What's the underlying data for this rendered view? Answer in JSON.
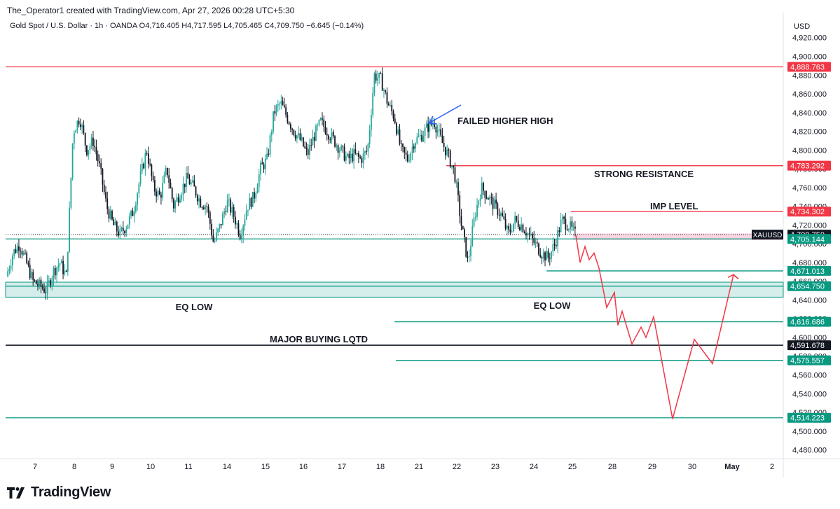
{
  "header": {
    "credit": "The_Operator1 created with TradingView.com, Apr 27, 2026 00:28 UTC+5:30",
    "symbol_line": "Gold Spot / U.S. Dollar · 1h · OANDA",
    "open_label": "O",
    "open": "4,716.405",
    "high_label": "H",
    "high": "4,717.595",
    "low_label": "L",
    "low": "4,705.465",
    "close_label": "C",
    "close": "4,709.750",
    "change": "−6.645 (−0.14%)"
  },
  "axis": {
    "currency": "USD"
  },
  "footer": {
    "brand": "TradingView"
  },
  "colors": {
    "up": "#26a69a",
    "down": "#131722",
    "resistance": "#f23645",
    "support": "#089981",
    "arrow": "#2962ff",
    "projection": "#f23645"
  },
  "chart_data": {
    "type": "candlestick",
    "ylim": [
      4470,
      4930
    ],
    "y_ticks": [
      4480,
      4500,
      4520,
      4540,
      4560,
      4580,
      4600,
      4620,
      4640,
      4660,
      4680,
      4700,
      4720,
      4740,
      4760,
      4780,
      4800,
      4820,
      4840,
      4860,
      4880,
      4900,
      4920
    ],
    "y_tick_labels": [
      "4,480.000",
      "4,500.000",
      "4,520.000",
      "4,540.000",
      "4,560.000",
      "4,580.000",
      "4,600.000",
      "4,620.000",
      "4,640.000",
      "4,660.000",
      "4,680.000",
      "4,700.000",
      "4,720.000",
      "4,740.000",
      "4,760.000",
      "4,780.000",
      "4,800.000",
      "4,820.000",
      "4,840.000",
      "4,860.000",
      "4,880.000",
      "4,900.000",
      "4,920.000"
    ],
    "x_ticks": [
      "7",
      "8",
      "9",
      "10",
      "11",
      "14",
      "15",
      "16",
      "17",
      "18",
      "21",
      "22",
      "23",
      "24",
      "25",
      "28",
      "29",
      "30",
      "May",
      "2"
    ],
    "price_path": [
      [
        0,
        4665
      ],
      [
        1,
        4690
      ],
      [
        2,
        4700
      ],
      [
        3,
        4680
      ],
      [
        4,
        4660
      ],
      [
        5,
        4655
      ],
      [
        6,
        4650
      ],
      [
        7,
        4670
      ],
      [
        8,
        4680
      ],
      [
        9,
        4665
      ],
      [
        10,
        4820
      ],
      [
        11,
        4835
      ],
      [
        12,
        4800
      ],
      [
        13,
        4810
      ],
      [
        14,
        4780
      ],
      [
        15,
        4740
      ],
      [
        16,
        4720
      ],
      [
        17,
        4710
      ],
      [
        18,
        4720
      ],
      [
        19,
        4735
      ],
      [
        20,
        4770
      ],
      [
        21,
        4800
      ],
      [
        22,
        4760
      ],
      [
        23,
        4750
      ],
      [
        24,
        4780
      ],
      [
        25,
        4740
      ],
      [
        26,
        4755
      ],
      [
        27,
        4770
      ],
      [
        28,
        4760
      ],
      [
        29,
        4745
      ],
      [
        30,
        4740
      ],
      [
        31,
        4700
      ],
      [
        32,
        4720
      ],
      [
        33,
        4745
      ],
      [
        34,
        4730
      ],
      [
        35,
        4710
      ],
      [
        36,
        4740
      ],
      [
        37,
        4750
      ],
      [
        38,
        4780
      ],
      [
        39,
        4790
      ],
      [
        40,
        4840
      ],
      [
        41,
        4850
      ],
      [
        42,
        4835
      ],
      [
        43,
        4820
      ],
      [
        44,
        4810
      ],
      [
        45,
        4795
      ],
      [
        46,
        4815
      ],
      [
        47,
        4830
      ],
      [
        48,
        4820
      ],
      [
        49,
        4810
      ],
      [
        50,
        4800
      ],
      [
        51,
        4790
      ],
      [
        52,
        4795
      ],
      [
        53,
        4790
      ],
      [
        54,
        4800
      ],
      [
        55,
        4880
      ],
      [
        56,
        4875
      ],
      [
        57,
        4850
      ],
      [
        58,
        4835
      ],
      [
        59,
        4800
      ],
      [
        60,
        4790
      ],
      [
        61,
        4810
      ],
      [
        62,
        4815
      ],
      [
        63,
        4825
      ],
      [
        64,
        4830
      ],
      [
        65,
        4810
      ],
      [
        66,
        4795
      ],
      [
        67,
        4775
      ],
      [
        68,
        4720
      ],
      [
        69,
        4680
      ],
      [
        70,
        4730
      ],
      [
        71,
        4760
      ],
      [
        72,
        4750
      ],
      [
        73,
        4740
      ],
      [
        74,
        4730
      ],
      [
        75,
        4710
      ],
      [
        76,
        4725
      ],
      [
        77,
        4720
      ],
      [
        78,
        4710
      ],
      [
        79,
        4700
      ],
      [
        80,
        4690
      ],
      [
        81,
        4685
      ],
      [
        82,
        4700
      ],
      [
        83,
        4725
      ],
      [
        84,
        4720
      ],
      [
        85,
        4710
      ]
    ],
    "candle_index_ticks": [
      0.8,
      10,
      19.2,
      28.4,
      37.6,
      46.9,
      56.1,
      65.3,
      74.5,
      83.7,
      93,
      102.2,
      111.4,
      120.6,
      129.8,
      139,
      148.3,
      157.5,
      166.7,
      175.9
    ],
    "price_labels": [
      {
        "value": 4888.763,
        "text": "4,888.763",
        "kind": "resistance"
      },
      {
        "value": 4783.292,
        "text": "4,783.292",
        "kind": "resistance"
      },
      {
        "value": 4734.302,
        "text": "4,734.302",
        "kind": "resistance"
      },
      {
        "value": 4709.75,
        "text": "4,709.750",
        "kind": "current",
        "symbol": "XAUUSD"
      },
      {
        "value": 4705.144,
        "text": "4,705.144",
        "kind": "support"
      },
      {
        "value": 4671.013,
        "text": "4,671.013",
        "kind": "support"
      },
      {
        "value": 4654.75,
        "text": "4,654.750",
        "kind": "support"
      },
      {
        "value": 4616.686,
        "text": "4,616.686",
        "kind": "support"
      },
      {
        "value": 4591.678,
        "text": "4,591.678",
        "kind": "major"
      },
      {
        "value": 4575.557,
        "text": "4,575.557",
        "kind": "support"
      },
      {
        "value": 4514.223,
        "text": "4,514.223",
        "kind": "support"
      }
    ],
    "annotations": [
      {
        "text": "FAILED HIGHER HIGH",
        "x_day": "21",
        "value": 4836
      },
      {
        "text": "STRONG RESISTANCE",
        "x_day": "22",
        "value": 4777
      },
      {
        "text": "IMP LEVEL",
        "x_day": "25",
        "value": 4740
      },
      {
        "text": "EQ LOW",
        "x_day": "11",
        "value": 4638
      },
      {
        "text": "EQ LOW",
        "x_day": "24",
        "value": 4640
      },
      {
        "text": "MAJOR BUYING LQTD",
        "x_day": "15",
        "value": 4596
      }
    ],
    "projection": [
      [
        4709,
        0
      ],
      [
        4680,
        1
      ],
      [
        4697,
        2
      ],
      [
        4683,
        3
      ],
      [
        4690,
        4
      ],
      [
        4674,
        5
      ],
      [
        4632,
        6
      ],
      [
        4648,
        7
      ],
      [
        4613,
        8
      ],
      [
        4628,
        9
      ],
      [
        4593,
        10
      ],
      [
        4611,
        11
      ],
      [
        4600,
        12
      ],
      [
        4622,
        13
      ],
      [
        4513,
        14
      ],
      [
        4598,
        15
      ],
      [
        4572,
        16
      ],
      [
        4667,
        17
      ],
      [
        4663,
        18
      ]
    ]
  }
}
